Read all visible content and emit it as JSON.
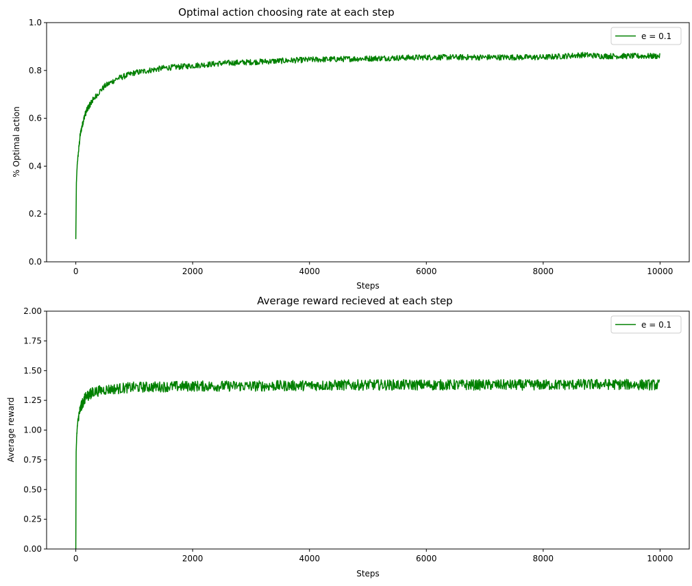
{
  "chart_data": [
    {
      "type": "line",
      "title": "Optimal action choosing rate at each step",
      "xlabel": "Steps",
      "ylabel": "% Optimal action",
      "xlim": [
        -500,
        10500
      ],
      "ylim": [
        0.0,
        1.0
      ],
      "xticks": [
        0,
        2000,
        4000,
        6000,
        8000,
        10000
      ],
      "xtick_labels": [
        "0",
        "2000",
        "4000",
        "6000",
        "8000",
        "10000"
      ],
      "yticks": [
        0.0,
        0.2,
        0.4,
        0.6,
        0.8,
        1.0
      ],
      "ytick_labels": [
        "0.0",
        "0.2",
        "0.4",
        "0.6",
        "0.8",
        "1.0"
      ],
      "grid": false,
      "legend_position": "top-right",
      "series": [
        {
          "name": "e = 0.1",
          "color": "#008000",
          "x": [
            0,
            10,
            25,
            50,
            75,
            100,
            150,
            200,
            300,
            400,
            500,
            700,
            1000,
            1500,
            2000,
            2500,
            3000,
            3500,
            4000,
            5000,
            6000,
            7000,
            8000,
            8700,
            9000,
            9500,
            10000
          ],
          "y": [
            0.095,
            0.33,
            0.41,
            0.47,
            0.53,
            0.56,
            0.61,
            0.64,
            0.68,
            0.71,
            0.735,
            0.765,
            0.79,
            0.81,
            0.82,
            0.83,
            0.835,
            0.84,
            0.845,
            0.85,
            0.855,
            0.855,
            0.855,
            0.865,
            0.86,
            0.86,
            0.86
          ],
          "noise_amplitude": 0.012
        }
      ]
    },
    {
      "type": "line",
      "title": "Average reward recieved at each step",
      "xlabel": "Steps",
      "ylabel": "Average reward",
      "xlim": [
        -500,
        10500
      ],
      "ylim": [
        0.0,
        2.0
      ],
      "xticks": [
        0,
        2000,
        4000,
        6000,
        8000,
        10000
      ],
      "xtick_labels": [
        "0",
        "2000",
        "4000",
        "6000",
        "8000",
        "10000"
      ],
      "yticks": [
        0.0,
        0.25,
        0.5,
        0.75,
        1.0,
        1.25,
        1.5,
        1.75,
        2.0
      ],
      "ytick_labels": [
        "0.00",
        "0.25",
        "0.50",
        "0.75",
        "1.00",
        "1.25",
        "1.50",
        "1.75",
        "2.00"
      ],
      "grid": false,
      "legend_position": "top-right",
      "series": [
        {
          "name": "e = 0.1",
          "color": "#008000",
          "x": [
            0,
            5,
            15,
            30,
            50,
            75,
            100,
            150,
            200,
            300,
            500,
            1000,
            2000,
            3000,
            4000,
            5000,
            6000,
            7000,
            8000,
            9000,
            10000
          ],
          "y": [
            0.0,
            0.8,
            0.95,
            1.05,
            1.12,
            1.17,
            1.21,
            1.26,
            1.29,
            1.32,
            1.34,
            1.36,
            1.37,
            1.37,
            1.375,
            1.38,
            1.38,
            1.38,
            1.38,
            1.385,
            1.38
          ],
          "noise_amplitude": 0.045
        }
      ]
    }
  ]
}
